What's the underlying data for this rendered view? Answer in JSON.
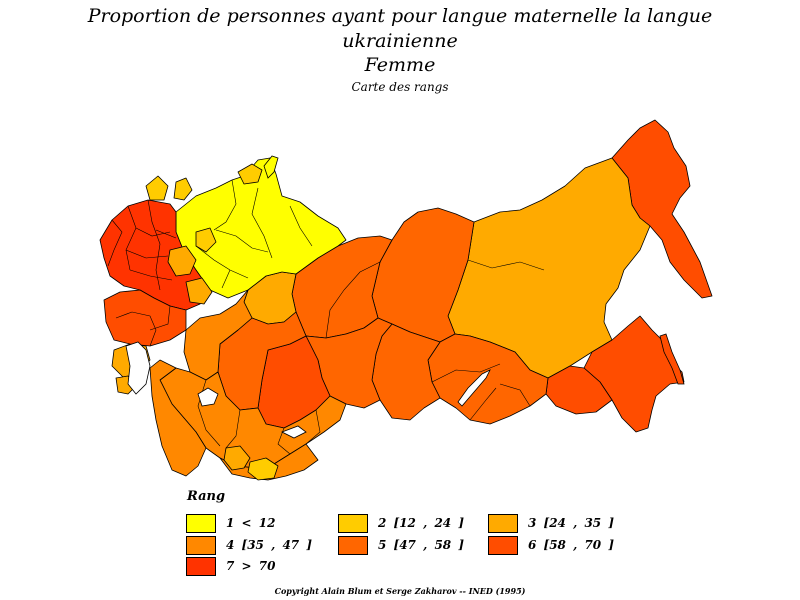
{
  "title": {
    "line1": "Proportion de personnes ayant pour langue maternelle la langue",
    "line2": "ukrainienne",
    "subtitle": "Femme",
    "caption": "Carte des rangs"
  },
  "colors": {
    "r1": "#ffff00",
    "r2": "#ffcc00",
    "r3": "#ffaa00",
    "r4": "#ff8800",
    "r5": "#ff6600",
    "r6": "#ff4d00",
    "r7": "#ff3300",
    "outline": "#000000"
  },
  "legend": {
    "title": "Rang",
    "items": [
      {
        "label": "1  <  12",
        "color": "#ffff00"
      },
      {
        "label": "2  [12  ,  24  ]",
        "color": "#ffcc00"
      },
      {
        "label": "3  [24  ,  35  ]",
        "color": "#ffaa00"
      },
      {
        "label": "4  [35  ,  47  ]",
        "color": "#ff8800"
      },
      {
        "label": "5  [47  ,  58  ]",
        "color": "#ff6600"
      },
      {
        "label": "6  [58  ,  70  ]",
        "color": "#ff4d00"
      },
      {
        "label": "7  >  70",
        "color": "#ff3300"
      }
    ]
  },
  "copyright": "Copyright Alain Blum et Serge Zakharov  --  INED (1995)"
}
